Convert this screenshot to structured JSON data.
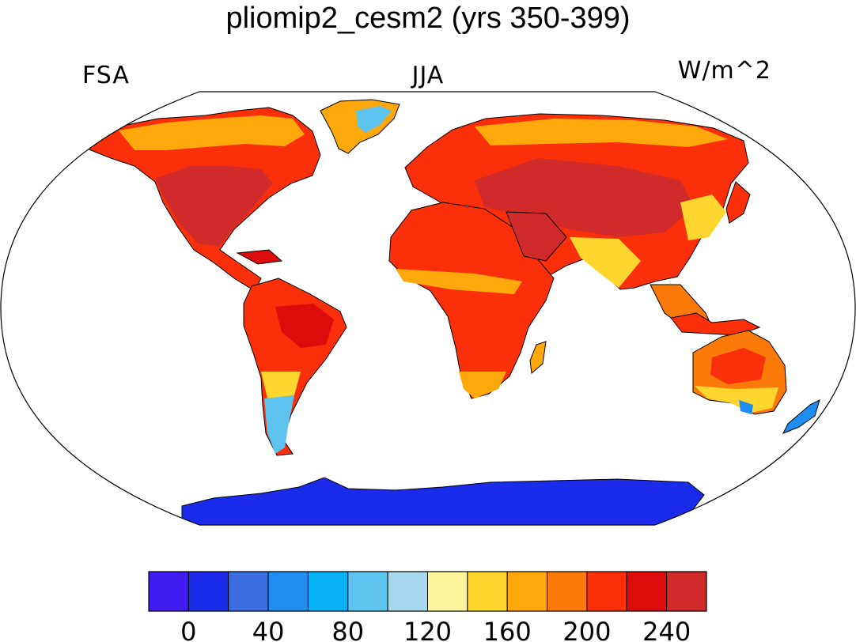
{
  "title": "pliomip2_cesm2 (yrs 350-399)",
  "labels": {
    "left": "FSA",
    "center": "JJA",
    "right": "W/m^2"
  },
  "colorbar": {
    "colors": [
      "#3f1bf1",
      "#1a2cea",
      "#3b6ce0",
      "#1f8cf0",
      "#07b1f4",
      "#5ec3ee",
      "#a6d8f0",
      "#fdf59c",
      "#fed62d",
      "#fea80c",
      "#fb7a0a",
      "#fb300b",
      "#dd0b0b",
      "#d02a2a"
    ],
    "tick_labels": [
      "0",
      "40",
      "80",
      "120",
      "160",
      "200",
      "240"
    ]
  }
}
